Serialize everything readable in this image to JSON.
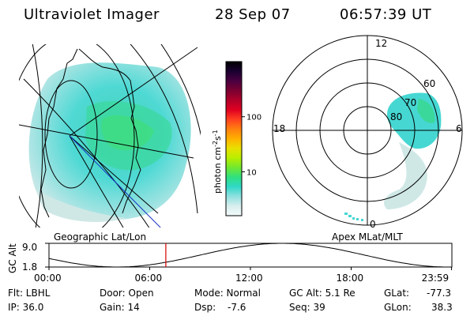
{
  "header": {
    "title": "Ultraviolet Imager",
    "date": "28 Sep 07",
    "time": "06:57:39 UT"
  },
  "colors": {
    "aurora_main": "#46d7d2",
    "aurora_bright": "#38c9a0",
    "aurora_peak": "#2ee06a",
    "aurora_pale": "#cfe8e6",
    "marker": "#d40000",
    "line": "#000000",
    "mag_line": "#1030c0"
  },
  "colorbar": {
    "label": "photon cm",
    "label_sup1": "-2",
    "label_mid": "s",
    "label_sup2": "-1",
    "ticks": [
      {
        "label": "100",
        "value": 100
      },
      {
        "label": "10",
        "value": 10
      }
    ],
    "stops": [
      "#000000",
      "#1a0030",
      "#4a0040",
      "#7a0030",
      "#b0002a",
      "#e00020",
      "#ff4020",
      "#ff8010",
      "#ffb000",
      "#e8e000",
      "#b8ee00",
      "#70e830",
      "#30e080",
      "#30d8c8",
      "#90e0e0",
      "#d8eeee",
      "#f4fafa"
    ]
  },
  "geo_panel": {
    "label": "Geographic Lat/Lon"
  },
  "polar_panel": {
    "label": "Apex MLat/MLT",
    "mlt_labels": [
      {
        "text": "12",
        "pos": "top"
      },
      {
        "text": "18",
        "pos": "left"
      },
      {
        "text": "6",
        "pos": "right"
      },
      {
        "text": "0",
        "pos": "bottom"
      }
    ],
    "lat_labels": [
      "60",
      "70",
      "80"
    ]
  },
  "altitude_plot": {
    "ylabel": "GC Alt",
    "ymax_label": "9.0",
    "ymin_label": "1.8",
    "y_range": [
      1.8,
      9.0
    ],
    "current_time_hours": 6.96,
    "xticks": [
      {
        "label": "00:00",
        "hours": 0
      },
      {
        "label": "06:00",
        "hours": 6
      },
      {
        "label": "12:00",
        "hours": 12
      },
      {
        "label": "18:00",
        "hours": 18
      },
      {
        "label": "23:59",
        "hours": 23.98
      }
    ]
  },
  "info": {
    "filter": "Flt: LBHL",
    "ip": "IP: 36.0",
    "door": "Door: Open",
    "gain": "Gain: 14",
    "mode": "Mode: Normal",
    "dsp_label": "Dsp:",
    "dsp_value": "-7.6",
    "gc_alt": "GC Alt: 5.1 Re",
    "seq": "Seq: 39",
    "glat_label": "GLat:",
    "glat_value": "-77.3",
    "glon_label": "GLon:",
    "glon_value": "38.3"
  }
}
